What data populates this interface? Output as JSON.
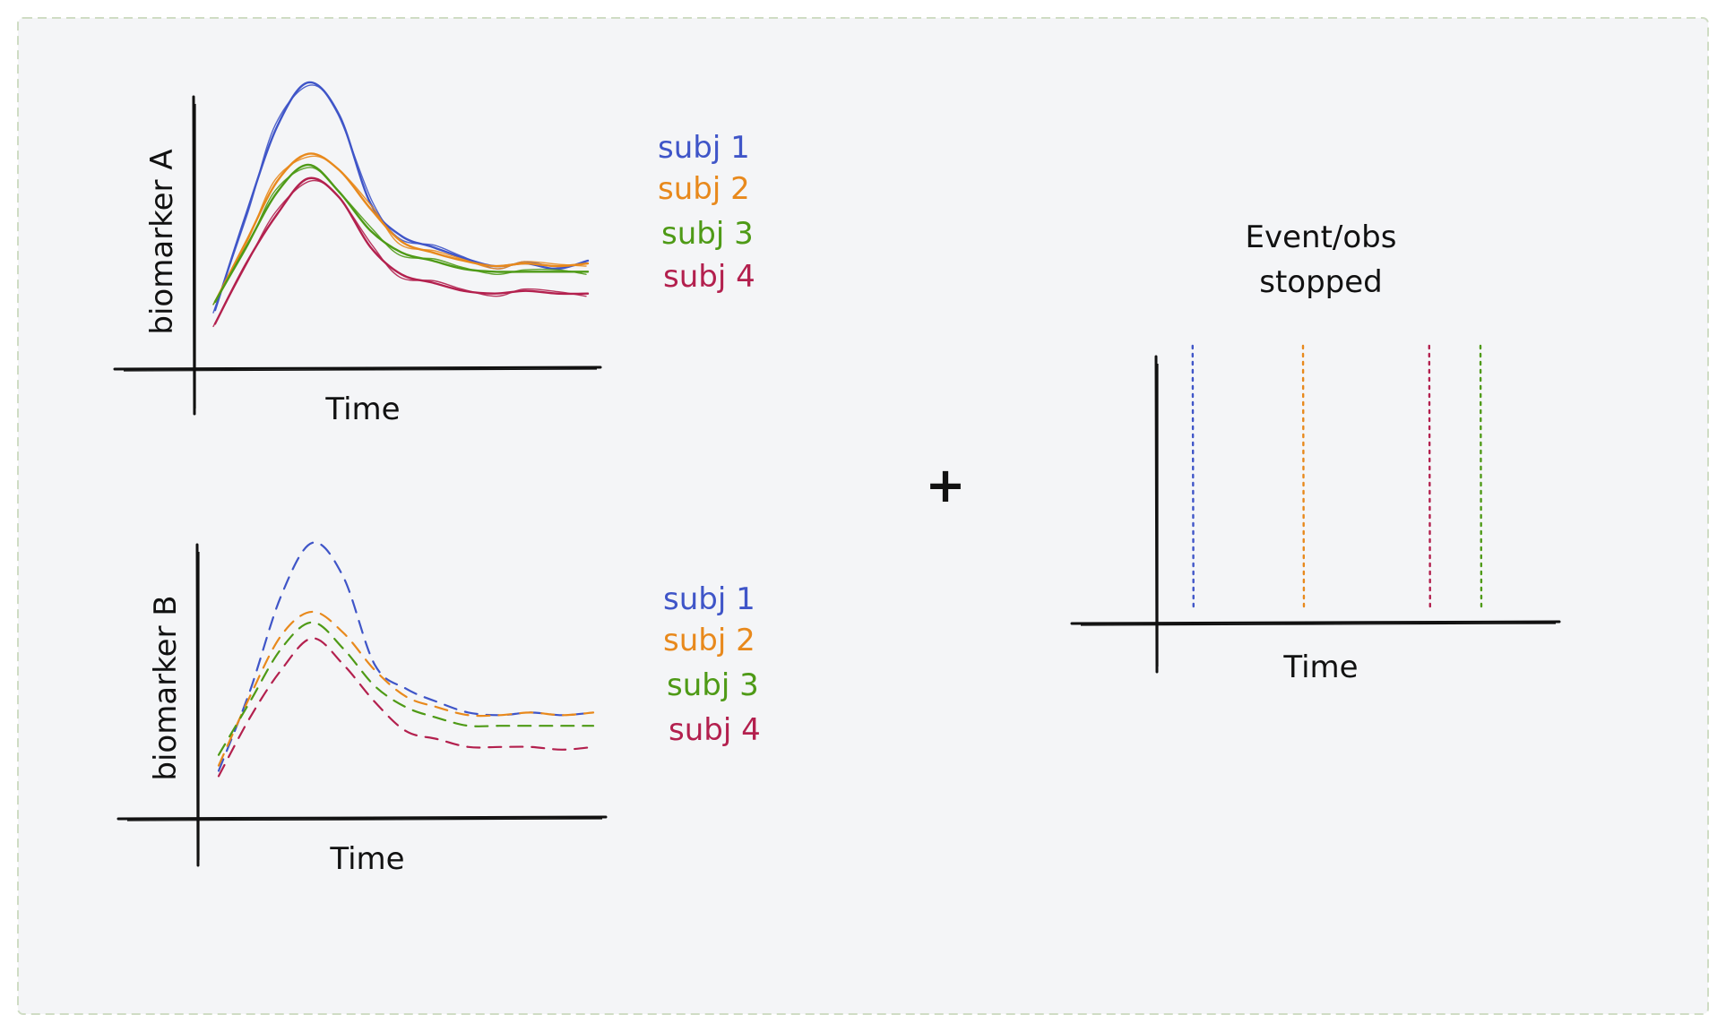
{
  "colors": {
    "background": "#f4f5f7",
    "border": "#cfdcc4",
    "ink": "#111111",
    "subj1": "#3f55c8",
    "subj2": "#e8891c",
    "subj3": "#4e9a16",
    "subj4": "#b3204e"
  },
  "panel_a": {
    "ylabel": "biomarker A",
    "xlabel": "Time",
    "legend": [
      "subj 1",
      "subj 2",
      "subj 3",
      "subj 4"
    ]
  },
  "panel_b": {
    "ylabel": "biomarker B",
    "xlabel": "Time",
    "legend": [
      "subj 1",
      "subj 2",
      "subj 3",
      "subj 4"
    ]
  },
  "operator": "+",
  "panel_event": {
    "title_line1": "Event/obs",
    "title_line2": "stopped",
    "xlabel": "Time"
  },
  "chart_data": [
    {
      "type": "line",
      "title": "",
      "ylabel": "biomarker A",
      "xlabel": "Time",
      "grid": false,
      "legend_position": "right",
      "x": [
        0,
        1,
        2,
        3,
        4,
        5,
        6,
        7,
        8,
        9,
        10,
        11,
        12
      ],
      "ylim": [
        0,
        100
      ],
      "series": [
        {
          "name": "subj 1",
          "style": "solid",
          "values": [
            15,
            50,
            82,
            98,
            86,
            54,
            42,
            38,
            34,
            31,
            32,
            30,
            33
          ]
        },
        {
          "name": "subj 2",
          "style": "solid",
          "values": [
            18,
            40,
            62,
            72,
            66,
            52,
            40,
            36,
            33,
            31,
            32,
            31,
            32
          ]
        },
        {
          "name": "subj 3",
          "style": "solid",
          "values": [
            18,
            38,
            58,
            68,
            58,
            44,
            36,
            33,
            30,
            29,
            29,
            29,
            29
          ]
        },
        {
          "name": "subj 4",
          "style": "solid",
          "values": [
            10,
            32,
            50,
            63,
            56,
            38,
            28,
            25,
            22,
            21,
            22,
            21,
            21
          ]
        }
      ]
    },
    {
      "type": "line",
      "title": "",
      "ylabel": "biomarker B",
      "xlabel": "Time",
      "grid": false,
      "legend_position": "right",
      "x": [
        0,
        1,
        2,
        3,
        4,
        5,
        6,
        7,
        8,
        9,
        10,
        11,
        12
      ],
      "ylim": [
        0,
        100
      ],
      "series": [
        {
          "name": "subj 1",
          "style": "dashed",
          "values": [
            12,
            42,
            78,
            98,
            85,
            52,
            43,
            38,
            34,
            33,
            34,
            33,
            34
          ]
        },
        {
          "name": "subj 2",
          "style": "dashed",
          "values": [
            14,
            40,
            63,
            72,
            64,
            50,
            40,
            36,
            33,
            33,
            34,
            33,
            34
          ]
        },
        {
          "name": "subj 3",
          "style": "dashed",
          "values": [
            18,
            38,
            58,
            68,
            58,
            44,
            36,
            32,
            29,
            29,
            29,
            29,
            29
          ]
        },
        {
          "name": "subj 4",
          "style": "dashed",
          "values": [
            10,
            32,
            50,
            62,
            52,
            38,
            27,
            24,
            21,
            21,
            21,
            20,
            21
          ]
        }
      ]
    },
    {
      "type": "line",
      "title": "Event/obs stopped",
      "xlabel": "Time",
      "grid": false,
      "xlim": [
        0,
        100
      ],
      "event_times": [
        {
          "subject": "subj 1",
          "color": "#3f55c8",
          "time": 7
        },
        {
          "subject": "subj 2",
          "color": "#e8891c",
          "time": 35
        },
        {
          "subject": "subj 4",
          "color": "#b3204e",
          "time": 67
        },
        {
          "subject": "subj 3",
          "color": "#4e9a16",
          "time": 80
        }
      ]
    }
  ]
}
